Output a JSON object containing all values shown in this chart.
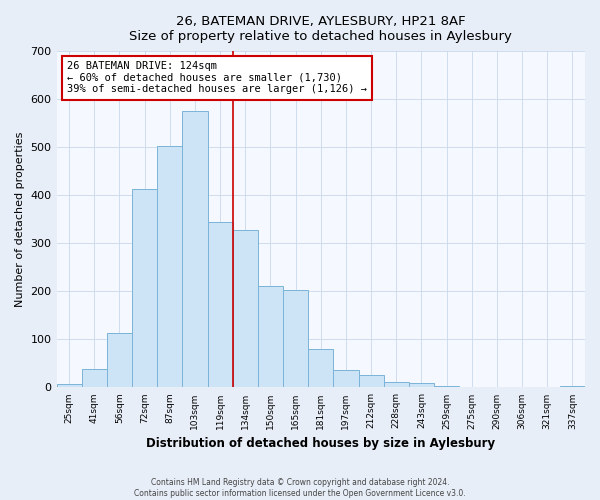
{
  "title": "26, BATEMAN DRIVE, AYLESBURY, HP21 8AF",
  "subtitle": "Size of property relative to detached houses in Aylesbury",
  "xlabel": "Distribution of detached houses by size in Aylesbury",
  "ylabel": "Number of detached properties",
  "bar_labels": [
    "25sqm",
    "41sqm",
    "56sqm",
    "72sqm",
    "87sqm",
    "103sqm",
    "119sqm",
    "134sqm",
    "150sqm",
    "165sqm",
    "181sqm",
    "197sqm",
    "212sqm",
    "228sqm",
    "243sqm",
    "259sqm",
    "275sqm",
    "290sqm",
    "306sqm",
    "321sqm",
    "337sqm"
  ],
  "bar_values": [
    8,
    38,
    113,
    413,
    503,
    575,
    345,
    328,
    212,
    202,
    80,
    37,
    25,
    12,
    10,
    3,
    0,
    0,
    0,
    0,
    2
  ],
  "bar_color": "#cce4f5",
  "bar_edge_color": "#7ab4d8",
  "vline_color": "#cc0000",
  "annotation_title": "26 BATEMAN DRIVE: 124sqm",
  "annotation_line1": "← 60% of detached houses are smaller (1,730)",
  "annotation_line2": "39% of semi-detached houses are larger (1,126) →",
  "annotation_box_facecolor": "#ffffff",
  "annotation_box_edgecolor": "#cc0000",
  "ylim": [
    0,
    700
  ],
  "yticks": [
    0,
    100,
    200,
    300,
    400,
    500,
    600,
    700
  ],
  "footer_line1": "Contains HM Land Registry data © Crown copyright and database right 2024.",
  "footer_line2": "Contains public sector information licensed under the Open Government Licence v3.0.",
  "bg_color": "#e8eef8",
  "plot_bg_color": "#f5f8ff",
  "grid_color": "#c8d8ec"
}
